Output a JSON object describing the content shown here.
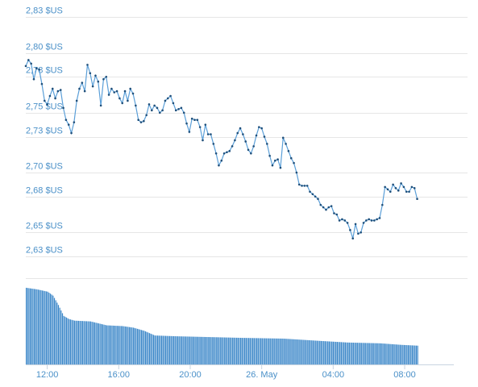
{
  "chart_data": {
    "type": "line",
    "title": "",
    "xlabel": "",
    "ylabel": "",
    "y_axis": {
      "ticks": [
        2.63,
        2.65,
        2.68,
        2.7,
        2.73,
        2.75,
        2.78,
        2.8,
        2.83
      ],
      "tick_labels": [
        "2,63 $US",
        "2,65 $US",
        "2,68 $US",
        "2,70 $US",
        "2,73 $US",
        "2,75 $US",
        "2,78 $US",
        "2,80 $US",
        "2,83 $US"
      ],
      "range": [
        2.63,
        2.83
      ]
    },
    "x_axis": {
      "tick_labels": [
        "12:00",
        "16:00",
        "20:00",
        "26. May",
        "04:00",
        "08:00"
      ],
      "tick_hours": [
        1.2,
        5.2,
        9.2,
        13.2,
        17.2,
        21.2
      ],
      "range_hours": [
        0,
        23.95
      ]
    },
    "grid": true,
    "colors": {
      "line": "#5b9fd8",
      "marker": "#1f4f7a",
      "volume": "#3a86c8",
      "grid": "#e6e6e6",
      "label": "#4a90c8"
    },
    "series": [
      {
        "values": [
          [
            0.0,
            2.789
          ],
          [
            0.15,
            2.794
          ],
          [
            0.3,
            2.791
          ],
          [
            0.45,
            2.778
          ],
          [
            0.6,
            2.787
          ],
          [
            0.75,
            2.786
          ],
          [
            0.9,
            2.774
          ],
          [
            1.05,
            2.76
          ],
          [
            1.2,
            2.757
          ],
          [
            1.35,
            2.764
          ],
          [
            1.5,
            2.77
          ],
          [
            1.65,
            2.762
          ],
          [
            1.8,
            2.768
          ],
          [
            1.95,
            2.769
          ],
          [
            2.1,
            2.754
          ],
          [
            2.25,
            2.744
          ],
          [
            2.4,
            2.74
          ],
          [
            2.55,
            2.733
          ],
          [
            2.7,
            2.742
          ],
          [
            2.85,
            2.76
          ],
          [
            3.0,
            2.77
          ],
          [
            3.15,
            2.775
          ],
          [
            3.3,
            2.768
          ],
          [
            3.45,
            2.79
          ],
          [
            3.6,
            2.783
          ],
          [
            3.75,
            2.772
          ],
          [
            3.9,
            2.781
          ],
          [
            4.05,
            2.776
          ],
          [
            4.2,
            2.756
          ],
          [
            4.35,
            2.778
          ],
          [
            4.5,
            2.78
          ],
          [
            4.65,
            2.765
          ],
          [
            4.8,
            2.77
          ],
          [
            4.95,
            2.767
          ],
          [
            5.1,
            2.768
          ],
          [
            5.25,
            2.762
          ],
          [
            5.4,
            2.758
          ],
          [
            5.55,
            2.768
          ],
          [
            5.7,
            2.76
          ],
          [
            5.85,
            2.77
          ],
          [
            6.0,
            2.766
          ],
          [
            6.15,
            2.756
          ],
          [
            6.3,
            2.744
          ],
          [
            6.45,
            2.742
          ],
          [
            6.6,
            2.743
          ],
          [
            6.75,
            2.748
          ],
          [
            6.9,
            2.757
          ],
          [
            7.05,
            2.752
          ],
          [
            7.2,
            2.756
          ],
          [
            7.35,
            2.754
          ],
          [
            7.5,
            2.75
          ],
          [
            7.65,
            2.752
          ],
          [
            7.8,
            2.76
          ],
          [
            7.95,
            2.762
          ],
          [
            8.1,
            2.764
          ],
          [
            8.25,
            2.758
          ],
          [
            8.4,
            2.752
          ],
          [
            8.55,
            2.753
          ],
          [
            8.7,
            2.754
          ],
          [
            8.85,
            2.75
          ],
          [
            9.0,
            2.741
          ],
          [
            9.15,
            2.734
          ],
          [
            9.3,
            2.745
          ],
          [
            9.45,
            2.744
          ],
          [
            9.6,
            2.744
          ],
          [
            9.75,
            2.738
          ],
          [
            9.9,
            2.727
          ],
          [
            10.05,
            2.74
          ],
          [
            10.2,
            2.732
          ],
          [
            10.35,
            2.732
          ],
          [
            10.5,
            2.724
          ],
          [
            10.65,
            2.716
          ],
          [
            10.8,
            2.706
          ],
          [
            10.95,
            2.71
          ],
          [
            11.1,
            2.716
          ],
          [
            11.25,
            2.717
          ],
          [
            11.4,
            2.718
          ],
          [
            11.55,
            2.722
          ],
          [
            11.7,
            2.727
          ],
          [
            11.85,
            2.733
          ],
          [
            12.0,
            2.737
          ],
          [
            12.15,
            2.732
          ],
          [
            12.3,
            2.726
          ],
          [
            12.45,
            2.719
          ],
          [
            12.6,
            2.716
          ],
          [
            12.75,
            2.722
          ],
          [
            12.9,
            2.731
          ],
          [
            13.05,
            2.738
          ],
          [
            13.2,
            2.737
          ],
          [
            13.35,
            2.73
          ],
          [
            13.5,
            2.724
          ],
          [
            13.65,
            2.714
          ],
          [
            13.8,
            2.706
          ],
          [
            13.95,
            2.71
          ],
          [
            14.1,
            2.711
          ],
          [
            14.25,
            2.704
          ],
          [
            14.4,
            2.729
          ],
          [
            14.55,
            2.724
          ],
          [
            14.7,
            2.718
          ],
          [
            14.85,
            2.712
          ],
          [
            15.0,
            2.708
          ],
          [
            15.15,
            2.7
          ],
          [
            15.3,
            2.69
          ],
          [
            15.45,
            2.689
          ],
          [
            15.6,
            2.689
          ],
          [
            15.75,
            2.689
          ],
          [
            15.9,
            2.684
          ],
          [
            16.05,
            2.682
          ],
          [
            16.2,
            2.68
          ],
          [
            16.35,
            2.678
          ],
          [
            16.5,
            2.673
          ],
          [
            16.65,
            2.671
          ],
          [
            16.8,
            2.669
          ],
          [
            16.95,
            2.671
          ],
          [
            17.1,
            2.672
          ],
          [
            17.25,
            2.666
          ],
          [
            17.4,
            2.665
          ],
          [
            17.55,
            2.66
          ],
          [
            17.7,
            2.661
          ],
          [
            17.85,
            2.66
          ],
          [
            18.0,
            2.658
          ],
          [
            18.15,
            2.652
          ],
          [
            18.3,
            2.645
          ],
          [
            18.45,
            2.657
          ],
          [
            18.6,
            2.649
          ],
          [
            18.75,
            2.65
          ],
          [
            18.9,
            2.658
          ],
          [
            19.05,
            2.66
          ],
          [
            19.2,
            2.661
          ],
          [
            19.35,
            2.66
          ],
          [
            19.5,
            2.66
          ],
          [
            19.65,
            2.661
          ],
          [
            19.8,
            2.662
          ],
          [
            19.95,
            2.673
          ],
          [
            20.1,
            2.688
          ],
          [
            20.25,
            2.686
          ],
          [
            20.4,
            2.684
          ],
          [
            20.55,
            2.69
          ],
          [
            20.7,
            2.687
          ],
          [
            20.85,
            2.685
          ],
          [
            21.0,
            2.691
          ],
          [
            21.15,
            2.688
          ],
          [
            21.3,
            2.684
          ],
          [
            21.45,
            2.684
          ],
          [
            21.6,
            2.688
          ],
          [
            21.75,
            2.687
          ],
          [
            21.9,
            2.678
          ]
        ]
      }
    ],
    "volume": {
      "note_unlabeled": true,
      "values": [
        [
          0.0,
          0.98
        ],
        [
          0.6,
          0.96
        ],
        [
          1.2,
          0.93
        ],
        [
          1.5,
          0.88
        ],
        [
          1.8,
          0.76
        ],
        [
          2.1,
          0.62
        ],
        [
          2.4,
          0.58
        ],
        [
          2.7,
          0.56
        ],
        [
          3.6,
          0.55
        ],
        [
          4.5,
          0.5
        ],
        [
          5.4,
          0.49
        ],
        [
          6.0,
          0.47
        ],
        [
          6.6,
          0.43
        ],
        [
          7.2,
          0.37
        ],
        [
          8.4,
          0.36
        ],
        [
          10.2,
          0.35
        ],
        [
          12.0,
          0.34
        ],
        [
          14.4,
          0.33
        ],
        [
          16.5,
          0.3
        ],
        [
          18.0,
          0.28
        ],
        [
          19.8,
          0.27
        ],
        [
          21.0,
          0.25
        ],
        [
          21.9,
          0.24
        ]
      ]
    }
  }
}
